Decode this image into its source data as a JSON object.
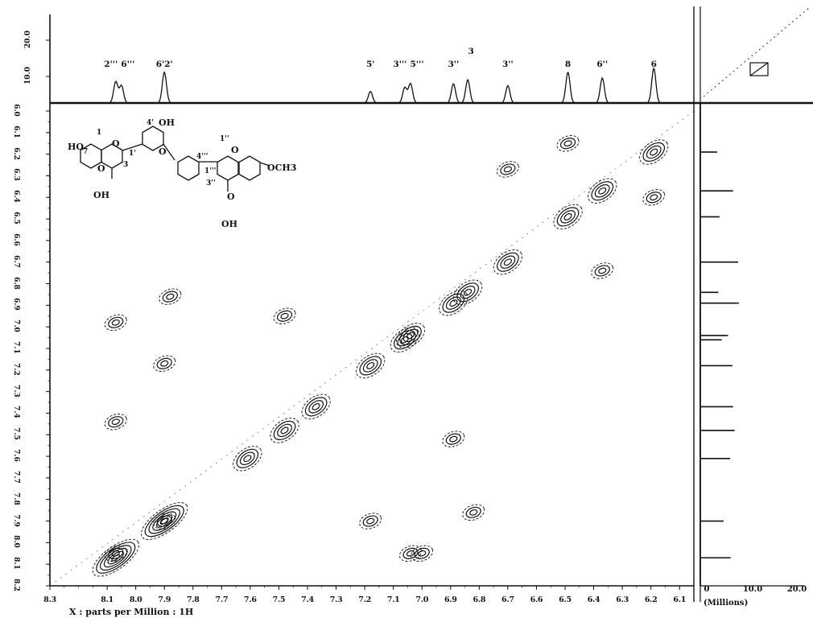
{
  "chart_data": {
    "type": "heatmap",
    "x_axis": {
      "label": "X : parts per Million : 1H",
      "range": [
        8.3,
        6.05
      ],
      "ticks": [
        "8.3",
        "8.1",
        "8.0",
        "7.9",
        "7.8",
        "7.7",
        "7.6",
        "7.5",
        "7.4",
        "7.3",
        "7.2",
        "7.1",
        "7.0",
        "6.9",
        "6.8",
        "6.7",
        "6.6",
        "6.5",
        "6.4",
        "6.3",
        "6.2",
        "6.1"
      ]
    },
    "y_axis": {
      "range": [
        6.0,
        8.2
      ],
      "ticks": [
        "6.0",
        "6.1",
        "6.2",
        "6.3",
        "6.4",
        "6.5",
        "6.6",
        "6.7",
        "6.8",
        "6.9",
        "7.0",
        "7.1",
        "7.2",
        "7.3",
        "7.4",
        "7.5",
        "7.6",
        "7.7",
        "7.8",
        "7.9",
        "8.0",
        "8.1",
        "8.2"
      ]
    },
    "top_projection": {
      "y_ticks": [
        "10.0",
        "20.0"
      ],
      "peaks": [
        {
          "label": "2'''",
          "ppm": 8.07,
          "height": 0.55
        },
        {
          "label": "6'''",
          "ppm": 8.05,
          "height": 0.45
        },
        {
          "label": "6'2'",
          "ppm": 7.9,
          "height": 0.8
        },
        {
          "label": "5'",
          "ppm": 7.18,
          "height": 0.3
        },
        {
          "label": "3'''",
          "ppm": 7.06,
          "height": 0.4
        },
        {
          "label": "5'''",
          "ppm": 7.04,
          "height": 0.5
        },
        {
          "label": "3''",
          "ppm": 6.89,
          "height": 0.5
        },
        {
          "label": "3",
          "ppm": 6.84,
          "height": 0.6
        },
        {
          "label": "3''",
          "ppm": 6.7,
          "height": 0.45
        },
        {
          "label": "8",
          "ppm": 6.49,
          "height": 0.8
        },
        {
          "label": "6''",
          "ppm": 6.37,
          "height": 0.65
        },
        {
          "label": "6",
          "ppm": 6.19,
          "height": 0.9
        }
      ]
    },
    "right_projection": {
      "label": "(Millions)",
      "ticks": [
        "0",
        "10.0",
        "20.0"
      ]
    },
    "diagonal_peaks": [
      6.19,
      6.37,
      6.49,
      6.7,
      6.84,
      6.89,
      7.04,
      7.06,
      7.18,
      7.37,
      7.48,
      7.61,
      7.9,
      8.07
    ],
    "cross_peaks": [
      {
        "x": 8.07,
        "y": 6.98
      },
      {
        "x": 7.9,
        "y": 7.17
      },
      {
        "x": 7.9,
        "y": 7.9
      },
      {
        "x": 8.07,
        "y": 8.05
      },
      {
        "x": 7.18,
        "y": 7.9
      },
      {
        "x": 7.04,
        "y": 8.05
      },
      {
        "x": 6.89,
        "y": 7.52
      },
      {
        "x": 6.49,
        "y": 6.15
      },
      {
        "x": 6.7,
        "y": 6.27
      },
      {
        "x": 6.19,
        "y": 6.4
      },
      {
        "x": 6.37,
        "y": 6.74
      },
      {
        "x": 8.07,
        "y": 7.44
      },
      {
        "x": 7.88,
        "y": 6.86
      },
      {
        "x": 7.48,
        "y": 6.95
      },
      {
        "x": 6.82,
        "y": 7.86
      },
      {
        "x": 7.0,
        "y": 8.05
      }
    ]
  },
  "structure": {
    "atoms": [
      "HO",
      "OH",
      "OH",
      "OH",
      "OCH3",
      "O",
      "O",
      "O",
      "O",
      "O",
      "7",
      "1",
      "3",
      "4'",
      "1'",
      "4'''",
      "1''",
      "3''",
      "1'''"
    ]
  }
}
